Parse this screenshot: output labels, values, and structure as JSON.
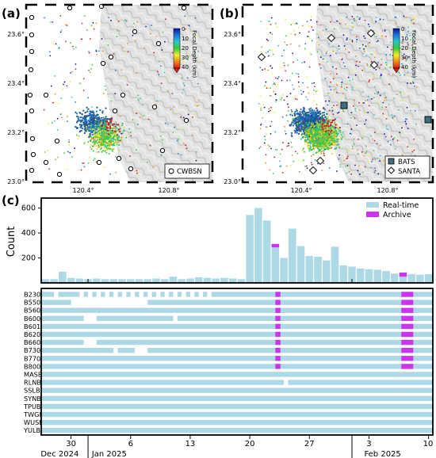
{
  "panels": {
    "a": {
      "label": "(a)",
      "legend": "CWBSN",
      "colorbar_title": "Focal Depth (km)"
    },
    "b": {
      "label": "(b)",
      "legend": [
        "BATS",
        "SANTA"
      ],
      "colorbar_title": "Focal Depth (km)"
    },
    "c": {
      "label": "(c)"
    }
  },
  "map_axes": {
    "lat_ticks": [
      "23.6°",
      "23.4°",
      "23.2°",
      "23.0°"
    ],
    "lon_ticks": [
      "120.4°",
      "120.8°"
    ],
    "lon_range": [
      120.0,
      121.0
    ],
    "lat_range": [
      23.0,
      23.7
    ]
  },
  "colorbar": {
    "ticks": [
      "0",
      "10",
      "20",
      "30",
      "40"
    ],
    "colors": [
      "#1010a0",
      "#1e78dc",
      "#28c8c8",
      "#3cc83c",
      "#f0f028",
      "#f08c1e",
      "#d21e1e"
    ]
  },
  "chart_data": {
    "type": "bar",
    "ylabel": "Count",
    "yticks": [
      200,
      400,
      600
    ],
    "ylim": [
      0,
      680
    ],
    "legend": [
      "Real-time",
      "Archive"
    ],
    "legend_position": "top-right",
    "colors": {
      "realtime": "#add8e6",
      "archive": "#cc33ee"
    },
    "start_date": "2024-12-26",
    "days": 46,
    "realtime": [
      30,
      30,
      90,
      40,
      35,
      30,
      35,
      30,
      30,
      30,
      30,
      30,
      30,
      35,
      30,
      50,
      30,
      35,
      45,
      40,
      35,
      40,
      35,
      30,
      545,
      600,
      500,
      300,
      200,
      435,
      295,
      215,
      210,
      180,
      290,
      140,
      130,
      115,
      110,
      105,
      95,
      75,
      70,
      70,
      65,
      70
    ],
    "archive": [
      0,
      0,
      0,
      0,
      0,
      0,
      0,
      0,
      0,
      0,
      0,
      0,
      0,
      0,
      0,
      0,
      0,
      0,
      0,
      0,
      0,
      0,
      0,
      0,
      0,
      0,
      0,
      15,
      0,
      0,
      0,
      0,
      0,
      0,
      0,
      0,
      0,
      0,
      0,
      0,
      0,
      0,
      20,
      0,
      0,
      0
    ],
    "station_panel": {
      "stations": [
        "B230",
        "B550",
        "B560",
        "B600",
        "B601",
        "B620",
        "B660",
        "B730",
        "B770",
        "B800",
        "MASB",
        "RLNB",
        "SSLB",
        "SYNB",
        "TPUB",
        "TWGB",
        "WUSB",
        "YULB"
      ],
      "realtime_coverage": [
        [
          [
            -0.5,
            1
          ],
          [
            1.5,
            4
          ],
          [
            4.5,
            5
          ],
          [
            5.5,
            6
          ],
          [
            6.5,
            7
          ],
          [
            7.5,
            8
          ],
          [
            8.5,
            9
          ],
          [
            9.5,
            10
          ],
          [
            10.5,
            11
          ],
          [
            11.5,
            12
          ],
          [
            12.5,
            13
          ],
          [
            13.5,
            14
          ],
          [
            14.5,
            15
          ],
          [
            15.5,
            16
          ],
          [
            16.5,
            17
          ],
          [
            17.5,
            18
          ],
          [
            18.5,
            19
          ],
          [
            19.5,
            45.5
          ]
        ],
        [
          [
            -0.5,
            3
          ],
          [
            12,
            45.5
          ]
        ],
        [
          [
            -0.5,
            45.5
          ]
        ],
        [
          [
            -0.5,
            4.5
          ],
          [
            6,
            15
          ],
          [
            15.5,
            45.5
          ]
        ],
        [
          [
            -0.5,
            45.5
          ]
        ],
        [
          [
            -0.5,
            45.5
          ]
        ],
        [
          [
            -0.5,
            4.5
          ],
          [
            6,
            45.5
          ]
        ],
        [
          [
            -0.5,
            8
          ],
          [
            8.5,
            10.5
          ],
          [
            12,
            45.5
          ]
        ],
        [
          [
            -0.5,
            45.5
          ]
        ],
        [
          [
            -0.5,
            45.5
          ]
        ],
        [
          [
            -0.5,
            45.5
          ]
        ],
        [
          [
            -0.5,
            28
          ],
          [
            28.5,
            45.5
          ]
        ],
        [
          [
            -0.5,
            45.5
          ]
        ],
        [
          [
            -0.5,
            45.5
          ]
        ],
        [
          [
            -0.5,
            45.5
          ]
        ],
        [
          [
            -0.5,
            45.5
          ]
        ],
        [
          [
            -0.5,
            45.5
          ]
        ],
        [
          [
            -0.5,
            45.5
          ]
        ]
      ],
      "archive_blocks": [
        [
          27,
          27.6
        ],
        [
          41.8,
          43.2
        ]
      ],
      "archive_rows": 10
    },
    "xticks": [
      {
        "day": 4,
        "label": "30"
      },
      {
        "day": 11,
        "label": "6"
      },
      {
        "day": 18,
        "label": "13"
      },
      {
        "day": 25,
        "label": "20"
      },
      {
        "day": 32,
        "label": "27"
      },
      {
        "day": 39,
        "label": "3"
      },
      {
        "day": 46,
        "label": "10"
      }
    ],
    "month_labels": [
      {
        "day": 1,
        "label": "Dec 2024"
      },
      {
        "day": 7,
        "label": "Jan 2025"
      },
      {
        "day": 39,
        "label": "Feb 2025"
      }
    ],
    "month_boundaries": [
      6,
      37
    ]
  }
}
